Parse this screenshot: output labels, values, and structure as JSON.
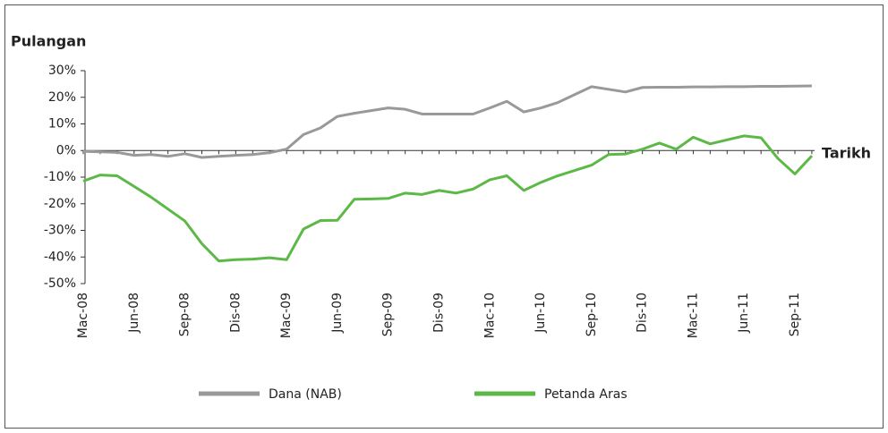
{
  "chart_data": {
    "type": "line",
    "y_axis_label": "Pulangan",
    "x_axis_label": "Tarikh",
    "categories": [
      "Mac-08",
      null,
      null,
      "Jun-08",
      null,
      null,
      "Sep-08",
      null,
      null,
      "Dis-08",
      null,
      null,
      "Mac-09",
      null,
      null,
      "Jun-09",
      null,
      null,
      "Sep-09",
      null,
      null,
      "Dis-09",
      null,
      null,
      "Mac-10",
      null,
      null,
      "Jun-10",
      null,
      null,
      "Sep-10",
      null,
      null,
      "Dis-10",
      null,
      null,
      "Mac-11",
      null,
      null,
      "Jun-11",
      null,
      null,
      "Sep-11",
      null
    ],
    "series": [
      {
        "name": "Dana (NAB)",
        "color": "#999999",
        "values": [
          -0.3,
          -0.5,
          -0.7,
          -1.8,
          -1.5,
          -2.2,
          -1.2,
          -2.6,
          -2.2,
          -1.8,
          -1.5,
          -0.8,
          0.5,
          6,
          8.5,
          12.8,
          14,
          15,
          16,
          15.5,
          13.7,
          13.7,
          13.7,
          13.7,
          16,
          18.5,
          14.5,
          16,
          18,
          21,
          24,
          23,
          22,
          23.7,
          23.8,
          23.8,
          23.9,
          23.9,
          24,
          24,
          24.1,
          24.1,
          24.2,
          24.3
        ]
      },
      {
        "name": "Petanda Aras",
        "color": "#5cb947",
        "values": [
          -11.5,
          -9.2,
          -9.5,
          -13.5,
          -17.5,
          -22,
          -26.5,
          -35,
          -41.5,
          -41,
          -40.8,
          -40.3,
          -41,
          -29.5,
          -26.3,
          -26.2,
          -18.3,
          -18.2,
          -18,
          -16,
          -16.5,
          -15,
          -16,
          -14.5,
          -11,
          -9.5,
          -15,
          -12,
          -9.5,
          -7.5,
          -5.5,
          -1.5,
          -1.3,
          0.5,
          2.8,
          0.5,
          5,
          2.5,
          4,
          5.5,
          4.8,
          -3,
          -8.8,
          -2
        ]
      }
    ],
    "ylim": [
      -50,
      30
    ],
    "yticks": [
      {
        "value": 30,
        "label": "30%"
      },
      {
        "value": 20,
        "label": "20%"
      },
      {
        "value": 10,
        "label": "10%"
      },
      {
        "value": 0,
        "label": "0%"
      },
      {
        "value": -10,
        "label": "-10%"
      },
      {
        "value": -20,
        "label": "-20%"
      },
      {
        "value": -30,
        "label": "-30%"
      },
      {
        "value": -40,
        "label": "-40%"
      },
      {
        "value": -50,
        "label": "-50%"
      }
    ]
  }
}
